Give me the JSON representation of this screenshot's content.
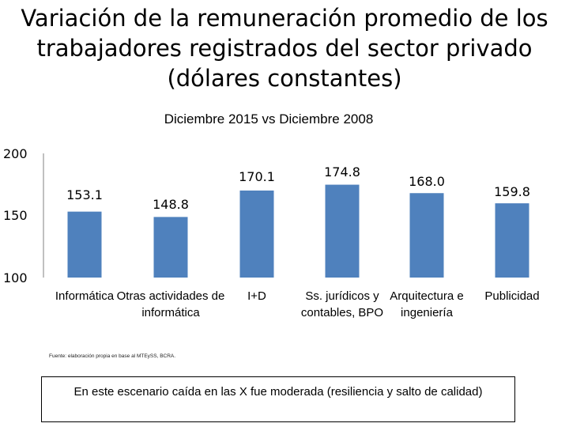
{
  "title_lines": [
    "Variación de la remuneración promedio de los",
    "trabajadores registrados del sector privado",
    "(dólares constantes)"
  ],
  "source": "Fuente: elaboración propia en base al MTEySS, BCRA.",
  "note": "En este escenario caída en las X fue moderada (resiliencia y salto de calidad)",
  "colors": {
    "bar": "#4f81bd",
    "axis": "#808080"
  },
  "chart_data": {
    "type": "bar",
    "title": "Diciembre 2015 vs Diciembre 2008",
    "xlabel": "",
    "ylabel": "",
    "categories": [
      "Informática",
      "Otras actividades de informática",
      "I+D",
      "Ss. jurídicos y contables, BPO",
      "Arquitectura e ingeniería",
      "Publicidad"
    ],
    "values": [
      153.1,
      148.8,
      170.1,
      174.8,
      168.0,
      159.8
    ],
    "value_labels": [
      "153.1",
      "148.8",
      "170.1",
      "174.8",
      "168.0",
      "159.8"
    ],
    "yticks": [
      "100",
      "150",
      "200"
    ],
    "ylim": [
      100,
      200
    ],
    "grid": false,
    "legend": "none"
  }
}
